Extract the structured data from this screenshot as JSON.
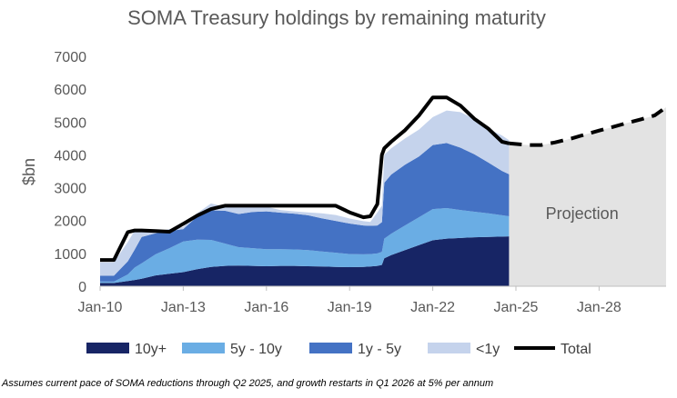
{
  "chart_data": {
    "type": "area",
    "title": "SOMA Treasury holdings by remaining maturity",
    "ylabel": "$bn",
    "xlabel": "",
    "ylim": [
      0,
      7000
    ],
    "xlim": [
      "2010-01",
      "2030-06"
    ],
    "yticks": [
      "0",
      "1000",
      "2000",
      "3000",
      "4000",
      "5000",
      "6000",
      "7000"
    ],
    "xticks": [
      {
        "date": "2010-01",
        "label": "Jan-10"
      },
      {
        "date": "2013-01",
        "label": "Jan-13"
      },
      {
        "date": "2016-01",
        "label": "Jan-16"
      },
      {
        "date": "2019-01",
        "label": "Jan-19"
      },
      {
        "date": "2022-01",
        "label": "Jan-22"
      },
      {
        "date": "2025-01",
        "label": "Jan-25"
      },
      {
        "date": "2028-01",
        "label": "Jan-28"
      }
    ],
    "grid": false,
    "legend_position": "bottom",
    "x": [
      "2010-01",
      "2010-07",
      "2011-01",
      "2011-04",
      "2011-07",
      "2012-01",
      "2012-07",
      "2013-01",
      "2013-07",
      "2014-01",
      "2014-07",
      "2015-01",
      "2015-07",
      "2016-01",
      "2016-07",
      "2017-01",
      "2017-07",
      "2018-01",
      "2018-07",
      "2019-01",
      "2019-07",
      "2019-10",
      "2020-01",
      "2020-03",
      "2020-04",
      "2020-07",
      "2021-01",
      "2021-07",
      "2022-01",
      "2022-07",
      "2023-01",
      "2023-07",
      "2024-01",
      "2024-07",
      "2024-10"
    ],
    "series": [
      {
        "name": "10y+",
        "color": "#172565",
        "values": [
          100,
          100,
          160,
          190,
          230,
          330,
          380,
          430,
          520,
          590,
          620,
          630,
          620,
          610,
          620,
          620,
          610,
          600,
          590,
          580,
          590,
          600,
          620,
          650,
          850,
          950,
          1100,
          1250,
          1400,
          1450,
          1470,
          1490,
          1500,
          1510,
          1520
        ]
      },
      {
        "name": "5y - 10y",
        "color": "#6aade4",
        "values": [
          40,
          40,
          200,
          380,
          470,
          640,
          780,
          930,
          900,
          820,
          680,
          560,
          540,
          520,
          510,
          500,
          490,
          460,
          430,
          400,
          380,
          380,
          380,
          400,
          600,
          650,
          750,
          850,
          950,
          930,
          850,
          780,
          720,
          650,
          610
        ]
      },
      {
        "name": "1y - 5y",
        "color": "#4472c4",
        "values": [
          180,
          180,
          400,
          550,
          800,
          640,
          520,
          380,
          700,
          900,
          1000,
          1010,
          1100,
          1150,
          1110,
          1090,
          1060,
          1010,
          970,
          930,
          880,
          860,
          850,
          900,
          1700,
          1800,
          1850,
          1850,
          1950,
          1980,
          1900,
          1750,
          1550,
          1350,
          1280
        ]
      },
      {
        "name": "<1y",
        "color": "#c5d3ec",
        "values": [
          410,
          410,
          590,
          580,
          200,
          60,
          60,
          60,
          100,
          210,
          120,
          200,
          150,
          140,
          80,
          70,
          90,
          150,
          180,
          150,
          130,
          120,
          400,
          500,
          850,
          800,
          800,
          820,
          850,
          990,
          1080,
          1070,
          1030,
          1080,
          1040
        ]
      },
      {
        "name": "Total",
        "color": "#000000",
        "x": [
          "2010-01",
          "2010-07",
          "2011-01",
          "2011-04",
          "2011-07",
          "2012-01",
          "2012-07",
          "2013-01",
          "2013-07",
          "2014-01",
          "2014-07",
          "2015-01",
          "2015-07",
          "2016-01",
          "2016-07",
          "2017-01",
          "2017-07",
          "2018-01",
          "2018-07",
          "2019-01",
          "2019-07",
          "2019-10",
          "2020-01",
          "2020-03",
          "2020-04",
          "2020-07",
          "2021-01",
          "2021-07",
          "2022-01",
          "2022-07",
          "2023-01",
          "2023-07",
          "2024-01",
          "2024-07",
          "2024-10",
          "2025-06",
          "2025-12",
          "2026-06",
          "2027-01",
          "2027-07",
          "2028-01",
          "2028-07",
          "2029-01",
          "2029-07",
          "2030-01",
          "2030-06"
        ],
        "values": [
          800,
          800,
          1650,
          1700,
          1700,
          1680,
          1660,
          1900,
          2150,
          2350,
          2450,
          2450,
          2450,
          2450,
          2450,
          2450,
          2450,
          2450,
          2450,
          2250,
          2100,
          2130,
          2500,
          4000,
          4200,
          4400,
          4750,
          5200,
          5750,
          5750,
          5500,
          5100,
          4800,
          4400,
          4350,
          4300,
          4300,
          4380,
          4500,
          4620,
          4740,
          4850,
          4970,
          5080,
          5200,
          5450
        ]
      }
    ],
    "projection": {
      "label": "Projection",
      "start": "2024-10",
      "end": "2030-06",
      "color": "#e3e3e3"
    },
    "total_line_style": {
      "actual": "solid",
      "projection": "dashed"
    }
  },
  "legend": [
    {
      "label": "10y+",
      "color": "#172565",
      "kind": "swatch"
    },
    {
      "label": "5y - 10y",
      "color": "#6aade4",
      "kind": "swatch"
    },
    {
      "label": "1y - 5y",
      "color": "#4472c4",
      "kind": "swatch"
    },
    {
      "label": "<1y",
      "color": "#c5d3ec",
      "kind": "swatch"
    },
    {
      "label": "Total",
      "color": "#000000",
      "kind": "line"
    }
  ],
  "footnote": "Assumes current pace of SOMA reductions through Q2 2025, and growth restarts in Q1 2026 at 5% per annum"
}
